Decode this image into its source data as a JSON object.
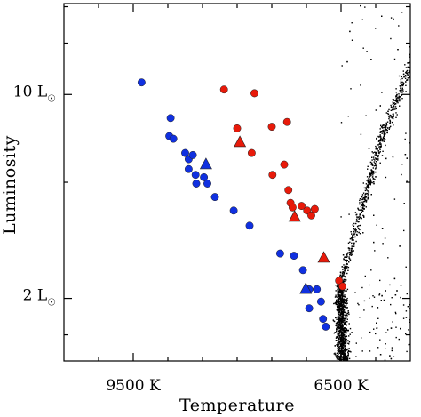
{
  "chart_data": {
    "type": "scatter",
    "title": "",
    "xlabel": "Temperature",
    "ylabel": "Luminosity",
    "x_axis": {
      "reversed": true,
      "range_K": [
        10500,
        5500
      ]
    },
    "y_axis": {
      "scale": "log",
      "range_Lsun": [
        1.22,
        20.5
      ]
    },
    "x_tick_labels": [
      {
        "value": 9500,
        "label": "9500  K"
      },
      {
        "value": 6500,
        "label": "6500  K"
      }
    ],
    "x_minor_ticks": [
      10000,
      9000,
      8500,
      8000,
      7500,
      7000,
      6000
    ],
    "y_tick_labels": [
      {
        "value": 10,
        "label": "10  L",
        "sub": "☉"
      },
      {
        "value": 2,
        "label": "2  L",
        "sub": "☉"
      }
    ],
    "y_minor_ticks": [
      1.5,
      5,
      15,
      20
    ],
    "grid": false,
    "colors": {
      "blue": "#1030e0",
      "red": "#e81a0a",
      "background_stars": "#000000"
    },
    "series": [
      {
        "marker": "circle",
        "color": "blue",
        "points": [
          [
            9380,
            11.0
          ],
          [
            8960,
            8.3
          ],
          [
            8980,
            7.2
          ],
          [
            8920,
            7.05
          ],
          [
            8750,
            6.3
          ],
          [
            8700,
            6.0
          ],
          [
            8640,
            6.2
          ],
          [
            8700,
            5.55
          ],
          [
            8600,
            5.3
          ],
          [
            8480,
            5.2
          ],
          [
            8430,
            4.95
          ],
          [
            8590,
            4.95
          ],
          [
            8320,
            4.45
          ],
          [
            8050,
            4.0
          ],
          [
            7820,
            3.55
          ],
          [
            7380,
            2.85
          ],
          [
            7180,
            2.8
          ],
          [
            7050,
            2.5
          ],
          [
            6960,
            2.15
          ],
          [
            6850,
            2.15
          ],
          [
            6960,
            1.85
          ],
          [
            6790,
            1.95
          ],
          [
            6760,
            1.7
          ],
          [
            6720,
            1.6
          ]
        ]
      },
      {
        "marker": "triangle",
        "color": "blue",
        "points": [
          [
            8450,
            5.75
          ],
          [
            7010,
            2.15
          ]
        ]
      },
      {
        "marker": "circle",
        "color": "red",
        "points": [
          [
            8190,
            10.4
          ],
          [
            7750,
            10.1
          ],
          [
            8000,
            7.65
          ],
          [
            7500,
            7.75
          ],
          [
            7280,
            8.05
          ],
          [
            7790,
            6.3
          ],
          [
            7490,
            5.3
          ],
          [
            7320,
            5.75
          ],
          [
            7260,
            4.7
          ],
          [
            7230,
            4.25
          ],
          [
            7200,
            4.1
          ],
          [
            7070,
            4.15
          ],
          [
            6990,
            4.0
          ],
          [
            6930,
            3.85
          ],
          [
            6880,
            4.05
          ],
          [
            6530,
            2.3
          ],
          [
            6480,
            2.2
          ]
        ]
      },
      {
        "marker": "triangle",
        "color": "red",
        "points": [
          [
            7960,
            6.85
          ],
          [
            7170,
            3.8
          ],
          [
            6750,
            2.75
          ]
        ]
      }
    ],
    "background_stars": {
      "marker": "dot",
      "color": "background_stars",
      "count": 2500,
      "note": "dense main sequence / turnoff cloud from ~6600 K upward to the right edge"
    }
  }
}
